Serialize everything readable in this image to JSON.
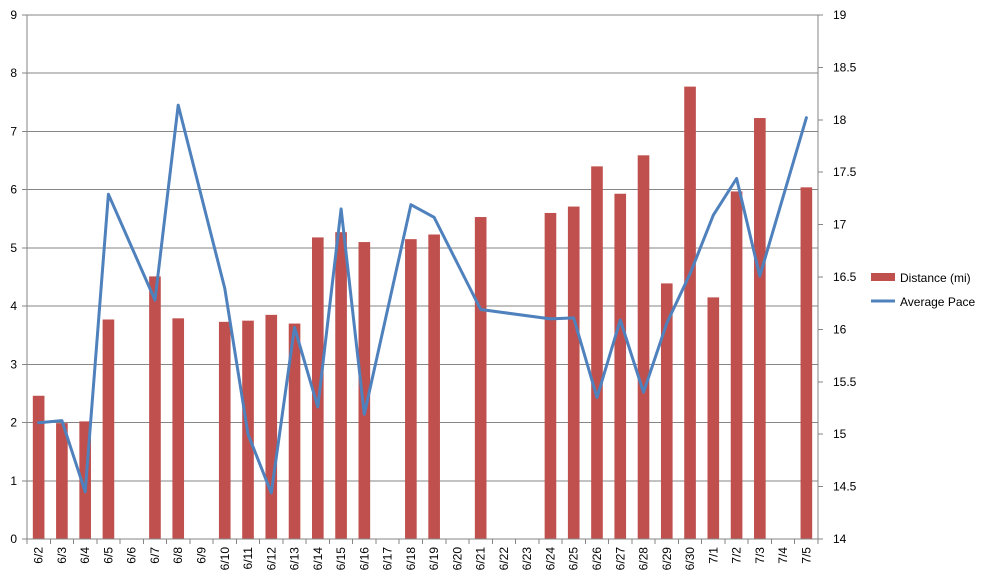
{
  "colors": {
    "bar": "#C0504D",
    "line": "#4F81BD",
    "grid": "#868686",
    "axis": "#868686"
  },
  "chart_data": {
    "type": "bar",
    "categories": [
      "6/2",
      "6/3",
      "6/4",
      "6/5",
      "6/6",
      "6/7",
      "6/8",
      "6/9",
      "6/10",
      "6/11",
      "6/12",
      "6/13",
      "6/14",
      "6/15",
      "6/16",
      "6/17",
      "6/18",
      "6/19",
      "6/20",
      "6/21",
      "6/22",
      "6/23",
      "6/24",
      "6/25",
      "6/26",
      "6/27",
      "6/28",
      "6/29",
      "6/30",
      "7/1",
      "7/2",
      "7/3",
      "7/4",
      "7/5"
    ],
    "series": [
      {
        "name": "Distance (mi)",
        "type": "bar",
        "axis": "left",
        "values": [
          2.46,
          1.99,
          2.02,
          3.77,
          null,
          4.51,
          3.79,
          null,
          3.73,
          3.75,
          3.85,
          3.7,
          5.18,
          5.27,
          5.1,
          null,
          5.15,
          5.23,
          null,
          5.53,
          null,
          null,
          5.6,
          5.71,
          6.4,
          5.93,
          6.59,
          4.39,
          7.77,
          4.15,
          5.97,
          7.23,
          null,
          6.04
        ]
      },
      {
        "name": "Average Pace",
        "type": "line",
        "axis": "right",
        "values": [
          15.11,
          15.13,
          14.45,
          17.29,
          null,
          16.28,
          18.14,
          null,
          16.39,
          15.0,
          14.44,
          16.02,
          15.26,
          17.15,
          15.19,
          null,
          17.19,
          17.07,
          null,
          16.19,
          null,
          null,
          16.1,
          16.11,
          15.35,
          16.09,
          15.4,
          16.06,
          16.53,
          17.09,
          17.44,
          16.51,
          null,
          18.02
        ]
      }
    ],
    "ylim": [
      0,
      9
    ],
    "yticks": [
      0,
      1,
      2,
      3,
      4,
      5,
      6,
      7,
      8,
      9
    ],
    "y2lim": [
      14,
      19
    ],
    "y2ticks": [
      "14",
      "14.5",
      "15",
      "15.5",
      "16",
      "16.5",
      "17",
      "17.5",
      "18",
      "18.5",
      "19"
    ],
    "grid": true,
    "legend_position": "right"
  }
}
